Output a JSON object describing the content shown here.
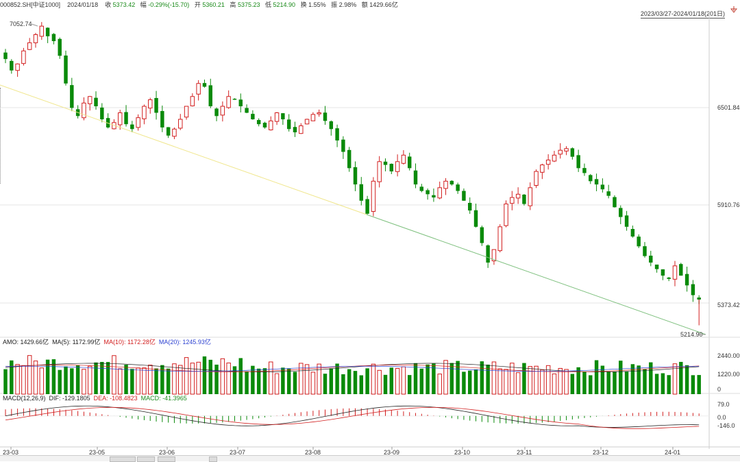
{
  "header": {
    "code": "000852.SH[中证1000]",
    "date": "2024/01/18",
    "close_label": "收",
    "close": "5373.42",
    "change_label": "幅",
    "change": "-0.29%(-15.70)",
    "open_label": "开",
    "open": "5360.21",
    "high_label": "高",
    "high": "5375.23",
    "low_label": "低",
    "low": "5214.90",
    "turnover_label": "换",
    "turnover": "1.55%",
    "amplitude_label": "振",
    "amplitude": "2.98%",
    "amount_label": "额",
    "amount": "1429.66亿",
    "range": "2023/03/27-2024/01/18(201日)"
  },
  "colors": {
    "up": "#d21e1e",
    "down": "#0a8a0a",
    "ma5": "#222222",
    "ma10": "#d21e1e",
    "ma20": "#2a3fd0",
    "trend_yellow": "#f0e68c",
    "trend_green": "#7cbf7c"
  },
  "icons": {
    "range_arrow": "down-arrow-icon"
  },
  "amo_legend": {
    "amo": "AMO: 1429.66亿",
    "ma5": "MA(5): 1172.99亿",
    "ma10": "MA(10): 1172.28亿",
    "ma20": "MA(20): 1245.93亿"
  },
  "macd_legend": {
    "name": "MACD(12,26,9)",
    "dif": "DIF: -129.1805",
    "dea": "DEA: -108.4823",
    "macd": "MACD: -41.3965"
  },
  "chart_data": [
    {
      "type": "candlestick",
      "x": [
        "23-03",
        "23-05",
        "23-06",
        "23-07",
        "23-08",
        "23-09",
        "23-10",
        "23-11",
        "23-12",
        "24-01"
      ],
      "x_positions_by_month": true,
      "y_ticks": [
        "6501.84",
        "5910.76",
        "5373.42"
      ],
      "high_marker": "7052.74",
      "low_marker": "5214.90",
      "last_close": 5373.42,
      "close_path_guide": [
        6850,
        6780,
        6820,
        6900,
        6950,
        7000,
        7052,
        6990,
        6960,
        6870,
        6700,
        6550,
        6500,
        6580,
        6620,
        6560,
        6480,
        6430,
        6460,
        6520,
        6450,
        6420,
        6490,
        6560,
        6600,
        6520,
        6430,
        6380,
        6420,
        6480,
        6560,
        6620,
        6700,
        6680,
        6560,
        6500,
        6560,
        6620,
        6600,
        6560,
        6520,
        6480,
        6450,
        6430,
        6470,
        6520,
        6480,
        6420,
        6400,
        6440,
        6480,
        6510,
        6520,
        6470,
        6420,
        6350,
        6280,
        6180,
        6080,
        5980,
        5900,
        6100,
        6220,
        6200,
        6160,
        6220,
        6260,
        6180,
        6080,
        6040,
        6020,
        6000,
        6060,
        6100,
        6080,
        6040,
        5980,
        5920,
        5820,
        5720,
        5600,
        5680,
        5820,
        5960,
        6000,
        6020,
        5960,
        6060,
        6160,
        6200,
        6230,
        6260,
        6290,
        6300,
        6250,
        6180,
        6150,
        6100,
        6080,
        6050,
        6010,
        5940,
        5880,
        5820,
        5760,
        5700,
        5640,
        5600,
        5560,
        5520,
        5500,
        5580,
        5520,
        5460,
        5400,
        5373
      ],
      "ylim": [
        5150,
        7120
      ]
    },
    {
      "type": "bar",
      "title": "AMO",
      "y_ticks": [
        "2440.00亿",
        "1220.00亿",
        "0"
      ],
      "ylim": [
        0,
        2800
      ]
    },
    {
      "type": "bar",
      "title": "MACD(12,26,9)",
      "y_ticks": [
        "79.0",
        "0.0",
        "-146.0"
      ],
      "ylim": [
        -160,
        100
      ]
    }
  ],
  "footer": {
    "months": [
      "23-03",
      "23-05",
      "23-06",
      "23-07",
      "23-08",
      "23-09",
      "23-10",
      "23-11",
      "23-12",
      "24-01"
    ]
  }
}
